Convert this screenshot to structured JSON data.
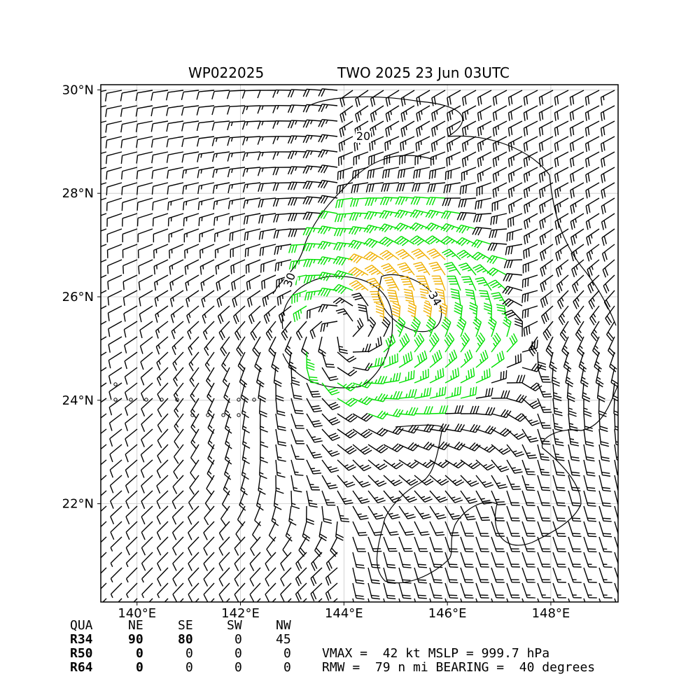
{
  "header": {
    "storm_id": "WP022025",
    "product_time": "TWO 2025 23 Jun 03UTC"
  },
  "chart_data": {
    "type": "wind-barb map",
    "lon_range": [
      139.3,
      149.3
    ],
    "lat_range": [
      20.1,
      30.1
    ],
    "x_ticks": [
      {
        "value": 140,
        "label": "140°E"
      },
      {
        "value": 142,
        "label": "142°E"
      },
      {
        "value": 144,
        "label": "144°E"
      },
      {
        "value": 146,
        "label": "146°E"
      },
      {
        "value": 148,
        "label": "148°E"
      }
    ],
    "y_ticks": [
      {
        "value": 30,
        "label": "30°N"
      },
      {
        "value": 28,
        "label": "28°N"
      },
      {
        "value": 26,
        "label": "26°N"
      },
      {
        "value": 24,
        "label": "24°N"
      },
      {
        "value": 22,
        "label": "22°N"
      }
    ],
    "grid": true,
    "storm_center": {
      "lon": 144.0,
      "lat": 25.3
    },
    "barb_colors": {
      "below_34kt": "#000000",
      "34_to_50kt": "#00e000",
      "above_50kt": "#f0b000"
    },
    "contours": [
      {
        "label": "20",
        "value": 20
      },
      {
        "label": "30",
        "value": 30
      },
      {
        "label": "34",
        "value": 34
      }
    ],
    "vmax_kt": 42,
    "rmw_nmi": 79,
    "bearing_deg": 40
  },
  "radii_table": {
    "headers": [
      "QUA",
      "NE",
      "SE",
      "SW",
      "NW"
    ],
    "rows": [
      {
        "label": "R34",
        "values": [
          "90",
          "80",
          "0",
          "45"
        ]
      },
      {
        "label": "R50",
        "values": [
          "0",
          "0",
          "0",
          "0"
        ]
      },
      {
        "label": "R64",
        "values": [
          "0",
          "0",
          "0",
          "0"
        ]
      }
    ]
  },
  "summary": {
    "line1": "VMAX =  42 kt MSLP = 999.7 hPa",
    "line2": "RMW =  79 n mi BEARING =  40 degrees"
  }
}
